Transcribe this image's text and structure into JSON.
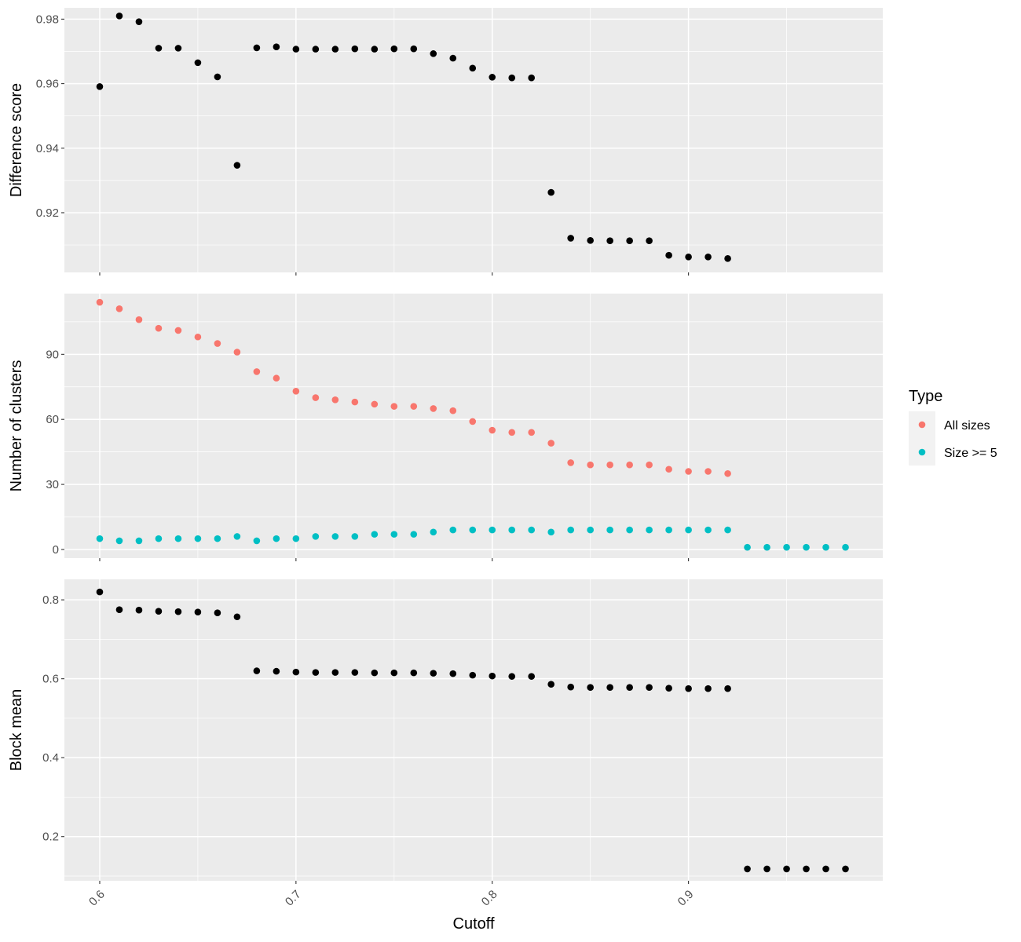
{
  "chart_data": {
    "type": "scatter",
    "xlabel": "Cutoff",
    "xlim": [
      0.582,
      0.999
    ],
    "x_ticks": [
      0.6,
      0.7,
      0.8,
      0.9
    ],
    "x_tick_labels": [
      "0.6",
      "0.7",
      "0.8",
      "0.9"
    ],
    "legend": {
      "title": "Type",
      "position": "right",
      "entries": [
        {
          "label": "All sizes",
          "color": "#F8766D"
        },
        {
          "label": "Size >= 5",
          "color": "#00BFC4"
        }
      ]
    },
    "panels": [
      {
        "ylabel": "Difference score",
        "ylim": [
          0.9015,
          0.9835
        ],
        "y_ticks": [
          0.92,
          0.94,
          0.96,
          0.98
        ],
        "y_tick_labels": [
          "0.92",
          "0.94",
          "0.96",
          "0.98"
        ],
        "series": [
          {
            "color": "#000000",
            "points": [
              [
                0.6,
                0.9591
              ],
              [
                0.61,
                0.981
              ],
              [
                0.62,
                0.9792
              ],
              [
                0.63,
                0.971
              ],
              [
                0.64,
                0.971
              ],
              [
                0.65,
                0.9665
              ],
              [
                0.66,
                0.9621
              ],
              [
                0.67,
                0.9347
              ],
              [
                0.68,
                0.9711
              ],
              [
                0.69,
                0.9714
              ],
              [
                0.7,
                0.9707
              ],
              [
                0.71,
                0.9707
              ],
              [
                0.72,
                0.9707
              ],
              [
                0.73,
                0.9708
              ],
              [
                0.74,
                0.9707
              ],
              [
                0.75,
                0.9708
              ],
              [
                0.76,
                0.9708
              ],
              [
                0.77,
                0.9693
              ],
              [
                0.78,
                0.9679
              ],
              [
                0.79,
                0.9648
              ],
              [
                0.8,
                0.962
              ],
              [
                0.81,
                0.9618
              ],
              [
                0.82,
                0.9618
              ],
              [
                0.83,
                0.9263
              ],
              [
                0.84,
                0.9121
              ],
              [
                0.85,
                0.9114
              ],
              [
                0.86,
                0.9113
              ],
              [
                0.87,
                0.9113
              ],
              [
                0.88,
                0.9113
              ],
              [
                0.89,
                0.9068
              ],
              [
                0.9,
                0.9063
              ],
              [
                0.91,
                0.9063
              ],
              [
                0.92,
                0.9058
              ]
            ]
          }
        ]
      },
      {
        "ylabel": "Number of clusters",
        "ylim": [
          -4,
          118
        ],
        "y_ticks": [
          0,
          30,
          60,
          90
        ],
        "y_tick_labels": [
          "0",
          "30",
          "60",
          "90"
        ],
        "series": [
          {
            "name": "All sizes",
            "color": "#F8766D",
            "points": [
              [
                0.6,
                114
              ],
              [
                0.61,
                111
              ],
              [
                0.62,
                106
              ],
              [
                0.63,
                102
              ],
              [
                0.64,
                101
              ],
              [
                0.65,
                98
              ],
              [
                0.66,
                95
              ],
              [
                0.67,
                91
              ],
              [
                0.68,
                82
              ],
              [
                0.69,
                79
              ],
              [
                0.7,
                73
              ],
              [
                0.71,
                70
              ],
              [
                0.72,
                69
              ],
              [
                0.73,
                68
              ],
              [
                0.74,
                67
              ],
              [
                0.75,
                66
              ],
              [
                0.76,
                66
              ],
              [
                0.77,
                65
              ],
              [
                0.78,
                64
              ],
              [
                0.79,
                59
              ],
              [
                0.8,
                55
              ],
              [
                0.81,
                54
              ],
              [
                0.82,
                54
              ],
              [
                0.83,
                49
              ],
              [
                0.84,
                40
              ],
              [
                0.85,
                39
              ],
              [
                0.86,
                39
              ],
              [
                0.87,
                39
              ],
              [
                0.88,
                39
              ],
              [
                0.89,
                37
              ],
              [
                0.9,
                36
              ],
              [
                0.91,
                36
              ],
              [
                0.92,
                35
              ]
            ]
          },
          {
            "name": "Size >= 5",
            "color": "#00BFC4",
            "points": [
              [
                0.6,
                5
              ],
              [
                0.61,
                4
              ],
              [
                0.62,
                4
              ],
              [
                0.63,
                5
              ],
              [
                0.64,
                5
              ],
              [
                0.65,
                5
              ],
              [
                0.66,
                5
              ],
              [
                0.67,
                6
              ],
              [
                0.68,
                4
              ],
              [
                0.69,
                5
              ],
              [
                0.7,
                5
              ],
              [
                0.71,
                6
              ],
              [
                0.72,
                6
              ],
              [
                0.73,
                6
              ],
              [
                0.74,
                7
              ],
              [
                0.75,
                7
              ],
              [
                0.76,
                7
              ],
              [
                0.77,
                8
              ],
              [
                0.78,
                9
              ],
              [
                0.79,
                9
              ],
              [
                0.8,
                9
              ],
              [
                0.81,
                9
              ],
              [
                0.82,
                9
              ],
              [
                0.83,
                8
              ],
              [
                0.84,
                9
              ],
              [
                0.85,
                9
              ],
              [
                0.86,
                9
              ],
              [
                0.87,
                9
              ],
              [
                0.88,
                9
              ],
              [
                0.89,
                9
              ],
              [
                0.9,
                9
              ],
              [
                0.91,
                9
              ],
              [
                0.92,
                9
              ],
              [
                0.93,
                1
              ],
              [
                0.94,
                1
              ],
              [
                0.95,
                1
              ],
              [
                0.96,
                1
              ],
              [
                0.97,
                1
              ],
              [
                0.98,
                1
              ]
            ]
          }
        ]
      },
      {
        "ylabel": "Block mean",
        "ylim": [
          0.088,
          0.852
        ],
        "y_ticks": [
          0.2,
          0.4,
          0.6,
          0.8
        ],
        "y_tick_labels": [
          "0.2",
          "0.4",
          "0.6",
          "0.8"
        ],
        "series": [
          {
            "color": "#000000",
            "points": [
              [
                0.6,
                0.82
              ],
              [
                0.61,
                0.775
              ],
              [
                0.62,
                0.774
              ],
              [
                0.63,
                0.771
              ],
              [
                0.64,
                0.77
              ],
              [
                0.65,
                0.769
              ],
              [
                0.66,
                0.767
              ],
              [
                0.67,
                0.757
              ],
              [
                0.68,
                0.62
              ],
              [
                0.69,
                0.619
              ],
              [
                0.7,
                0.617
              ],
              [
                0.71,
                0.616
              ],
              [
                0.72,
                0.616
              ],
              [
                0.73,
                0.616
              ],
              [
                0.74,
                0.615
              ],
              [
                0.75,
                0.615
              ],
              [
                0.76,
                0.615
              ],
              [
                0.77,
                0.614
              ],
              [
                0.78,
                0.613
              ],
              [
                0.79,
                0.609
              ],
              [
                0.8,
                0.607
              ],
              [
                0.81,
                0.606
              ],
              [
                0.82,
                0.606
              ],
              [
                0.83,
                0.586
              ],
              [
                0.84,
                0.579
              ],
              [
                0.85,
                0.578
              ],
              [
                0.86,
                0.578
              ],
              [
                0.87,
                0.578
              ],
              [
                0.88,
                0.578
              ],
              [
                0.89,
                0.576
              ],
              [
                0.9,
                0.575
              ],
              [
                0.91,
                0.575
              ],
              [
                0.92,
                0.575
              ],
              [
                0.93,
                0.118
              ],
              [
                0.94,
                0.118
              ],
              [
                0.95,
                0.118
              ],
              [
                0.96,
                0.118
              ],
              [
                0.97,
                0.118
              ],
              [
                0.98,
                0.118
              ]
            ]
          }
        ]
      }
    ]
  }
}
